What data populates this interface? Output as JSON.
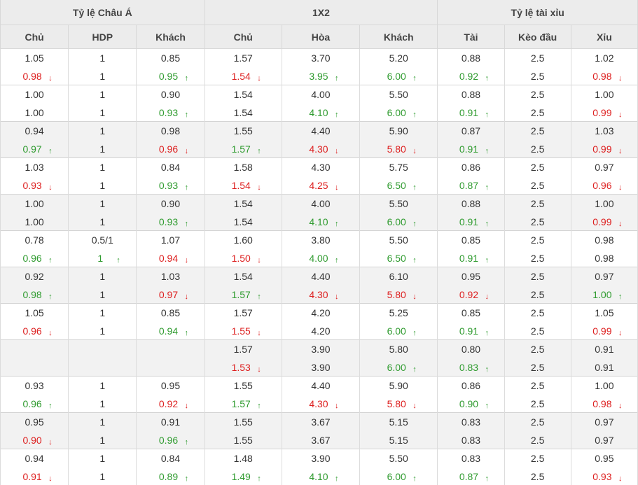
{
  "headers": {
    "groups": [
      "Tỷ lệ Châu Á",
      "1X2",
      "Tỷ lệ tài xỉu"
    ],
    "columns": [
      "Chủ",
      "HDP",
      "Khách",
      "Chủ",
      "Hòa",
      "Khách",
      "Tài",
      "Kèo đầu",
      "Xỉu"
    ]
  },
  "rows": [
    {
      "shade": false,
      "top": [
        "1.05",
        "1",
        "0.85",
        "1.57",
        "3.70",
        "5.20",
        "0.88",
        "2.5",
        "1.02"
      ],
      "bottom": [
        [
          "0.98",
          "down"
        ],
        [
          "1",
          ""
        ],
        [
          "0.95",
          "up"
        ],
        [
          "1.54",
          "down"
        ],
        [
          "3.95",
          "up"
        ],
        [
          "6.00",
          "up"
        ],
        [
          "0.92",
          "up"
        ],
        [
          "2.5",
          ""
        ],
        [
          "0.98",
          "down"
        ]
      ]
    },
    {
      "shade": false,
      "top": [
        "1.00",
        "1",
        "0.90",
        "1.54",
        "4.00",
        "5.50",
        "0.88",
        "2.5",
        "1.00"
      ],
      "bottom": [
        [
          "1.00",
          ""
        ],
        [
          "1",
          ""
        ],
        [
          "0.93",
          "up"
        ],
        [
          "1.54",
          ""
        ],
        [
          "4.10",
          "up"
        ],
        [
          "6.00",
          "up"
        ],
        [
          "0.91",
          "up"
        ],
        [
          "2.5",
          ""
        ],
        [
          "0.99",
          "down"
        ]
      ]
    },
    {
      "shade": true,
      "top": [
        "0.94",
        "1",
        "0.98",
        "1.55",
        "4.40",
        "5.90",
        "0.87",
        "2.5",
        "1.03"
      ],
      "bottom": [
        [
          "0.97",
          "up"
        ],
        [
          "1",
          ""
        ],
        [
          "0.96",
          "down"
        ],
        [
          "1.57",
          "up"
        ],
        [
          "4.30",
          "down"
        ],
        [
          "5.80",
          "down"
        ],
        [
          "0.91",
          "up"
        ],
        [
          "2.5",
          ""
        ],
        [
          "0.99",
          "down"
        ]
      ]
    },
    {
      "shade": false,
      "top": [
        "1.03",
        "1",
        "0.84",
        "1.58",
        "4.30",
        "5.75",
        "0.86",
        "2.5",
        "0.97"
      ],
      "bottom": [
        [
          "0.93",
          "down"
        ],
        [
          "1",
          ""
        ],
        [
          "0.93",
          "up"
        ],
        [
          "1.54",
          "down"
        ],
        [
          "4.25",
          "down"
        ],
        [
          "6.50",
          "up"
        ],
        [
          "0.87",
          "up"
        ],
        [
          "2.5",
          ""
        ],
        [
          "0.96",
          "down"
        ]
      ]
    },
    {
      "shade": true,
      "top": [
        "1.00",
        "1",
        "0.90",
        "1.54",
        "4.00",
        "5.50",
        "0.88",
        "2.5",
        "1.00"
      ],
      "bottom": [
        [
          "1.00",
          ""
        ],
        [
          "1",
          ""
        ],
        [
          "0.93",
          "up"
        ],
        [
          "1.54",
          ""
        ],
        [
          "4.10",
          "up"
        ],
        [
          "6.00",
          "up"
        ],
        [
          "0.91",
          "up"
        ],
        [
          "2.5",
          ""
        ],
        [
          "0.99",
          "down"
        ]
      ]
    },
    {
      "shade": false,
      "top": [
        "0.78",
        "0.5/1",
        "1.07",
        "1.60",
        "3.80",
        "5.50",
        "0.85",
        "2.5",
        "0.98"
      ],
      "bottom": [
        [
          "0.96",
          "up"
        ],
        [
          "1",
          "up"
        ],
        [
          "0.94",
          "down"
        ],
        [
          "1.50",
          "down"
        ],
        [
          "4.00",
          "up"
        ],
        [
          "6.50",
          "up"
        ],
        [
          "0.91",
          "up"
        ],
        [
          "2.5",
          ""
        ],
        [
          "0.98",
          ""
        ]
      ]
    },
    {
      "shade": true,
      "top": [
        "0.92",
        "1",
        "1.03",
        "1.54",
        "4.40",
        "6.10",
        "0.95",
        "2.5",
        "0.97"
      ],
      "bottom": [
        [
          "0.98",
          "up"
        ],
        [
          "1",
          ""
        ],
        [
          "0.97",
          "down"
        ],
        [
          "1.57",
          "up"
        ],
        [
          "4.30",
          "down"
        ],
        [
          "5.80",
          "down"
        ],
        [
          "0.92",
          "down"
        ],
        [
          "2.5",
          ""
        ],
        [
          "1.00",
          "up"
        ]
      ]
    },
    {
      "shade": false,
      "top": [
        "1.05",
        "1",
        "0.85",
        "1.57",
        "4.20",
        "5.25",
        "0.85",
        "2.5",
        "1.05"
      ],
      "bottom": [
        [
          "0.96",
          "down"
        ],
        [
          "1",
          ""
        ],
        [
          "0.94",
          "up"
        ],
        [
          "1.55",
          "down"
        ],
        [
          "4.20",
          ""
        ],
        [
          "6.00",
          "up"
        ],
        [
          "0.91",
          "up"
        ],
        [
          "2.5",
          ""
        ],
        [
          "0.99",
          "down"
        ]
      ]
    },
    {
      "shade": true,
      "top": [
        "",
        "",
        "",
        "1.57",
        "3.90",
        "5.80",
        "0.80",
        "2.5",
        "0.91"
      ],
      "bottom": [
        [
          "",
          ""
        ],
        [
          "",
          ""
        ],
        [
          "",
          ""
        ],
        [
          "1.53",
          "down"
        ],
        [
          "3.90",
          ""
        ],
        [
          "6.00",
          "up"
        ],
        [
          "0.83",
          "up"
        ],
        [
          "2.5",
          ""
        ],
        [
          "0.91",
          ""
        ]
      ]
    },
    {
      "shade": false,
      "top": [
        "0.93",
        "1",
        "0.95",
        "1.55",
        "4.40",
        "5.90",
        "0.86",
        "2.5",
        "1.00"
      ],
      "bottom": [
        [
          "0.96",
          "up"
        ],
        [
          "1",
          ""
        ],
        [
          "0.92",
          "down"
        ],
        [
          "1.57",
          "up"
        ],
        [
          "4.30",
          "down"
        ],
        [
          "5.80",
          "down"
        ],
        [
          "0.90",
          "up"
        ],
        [
          "2.5",
          ""
        ],
        [
          "0.98",
          "down"
        ]
      ]
    },
    {
      "shade": true,
      "top": [
        "0.95",
        "1",
        "0.91",
        "1.55",
        "3.67",
        "5.15",
        "0.83",
        "2.5",
        "0.97"
      ],
      "bottom": [
        [
          "0.90",
          "down"
        ],
        [
          "1",
          ""
        ],
        [
          "0.96",
          "up"
        ],
        [
          "1.55",
          ""
        ],
        [
          "3.67",
          ""
        ],
        [
          "5.15",
          ""
        ],
        [
          "0.83",
          ""
        ],
        [
          "2.5",
          ""
        ],
        [
          "0.97",
          ""
        ]
      ]
    },
    {
      "shade": false,
      "top": [
        "0.94",
        "1",
        "0.84",
        "1.48",
        "3.90",
        "5.50",
        "0.83",
        "2.5",
        "0.95"
      ],
      "bottom": [
        [
          "0.91",
          "down"
        ],
        [
          "1",
          ""
        ],
        [
          "0.89",
          "up"
        ],
        [
          "1.49",
          "up"
        ],
        [
          "4.10",
          "up"
        ],
        [
          "6.00",
          "up"
        ],
        [
          "0.87",
          "up"
        ],
        [
          "2.5",
          ""
        ],
        [
          "0.93",
          "down"
        ]
      ]
    }
  ],
  "colors": {
    "up": "#2f9b2f",
    "down": "#dd1f1f",
    "header_bg": "#ececec",
    "shade_bg": "#f2f2f2"
  },
  "icons": {
    "up": "arrow-up-icon",
    "down": "arrow-down-icon"
  }
}
